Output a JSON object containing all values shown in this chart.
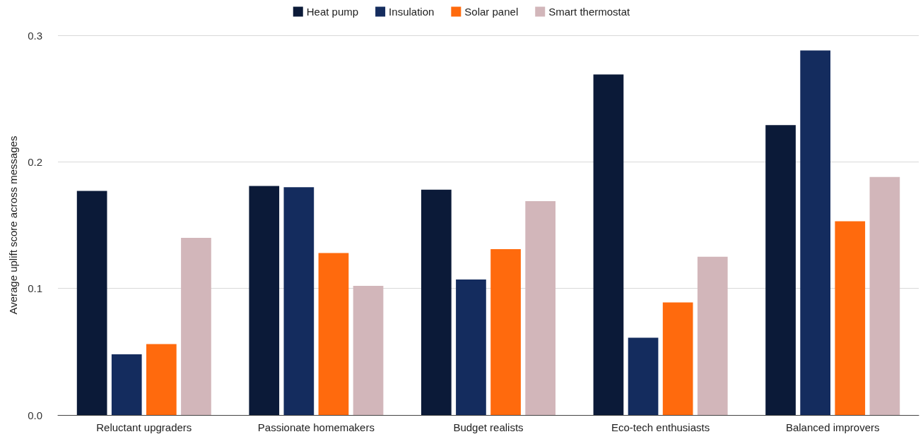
{
  "chart_data": {
    "type": "bar",
    "ylabel": "Average uplift score across messages",
    "categories": [
      "Reluctant upgraders",
      "Passionate homemakers",
      "Budget realists",
      "Eco-tech enthusiasts",
      "Balanced improvers"
    ],
    "series": [
      {
        "name": "Heat pump",
        "color": "#0b1a38",
        "values": [
          0.177,
          0.181,
          0.178,
          0.269,
          0.229
        ]
      },
      {
        "name": "Insulation",
        "color": "#142c5e",
        "values": [
          0.048,
          0.18,
          0.107,
          0.061,
          0.288
        ]
      },
      {
        "name": "Solar panel",
        "color": "#ff6a0d",
        "values": [
          0.056,
          0.128,
          0.131,
          0.089,
          0.153
        ]
      },
      {
        "name": "Smart thermostat",
        "color": "#d2b6ba",
        "values": [
          0.14,
          0.102,
          0.169,
          0.125,
          0.188
        ]
      }
    ],
    "ylim": [
      0,
      0.3
    ],
    "yticks": [
      {
        "value": 0,
        "label": "0.0"
      },
      0.1,
      0.2,
      0.3
    ],
    "grid": "y",
    "legend": "top"
  }
}
